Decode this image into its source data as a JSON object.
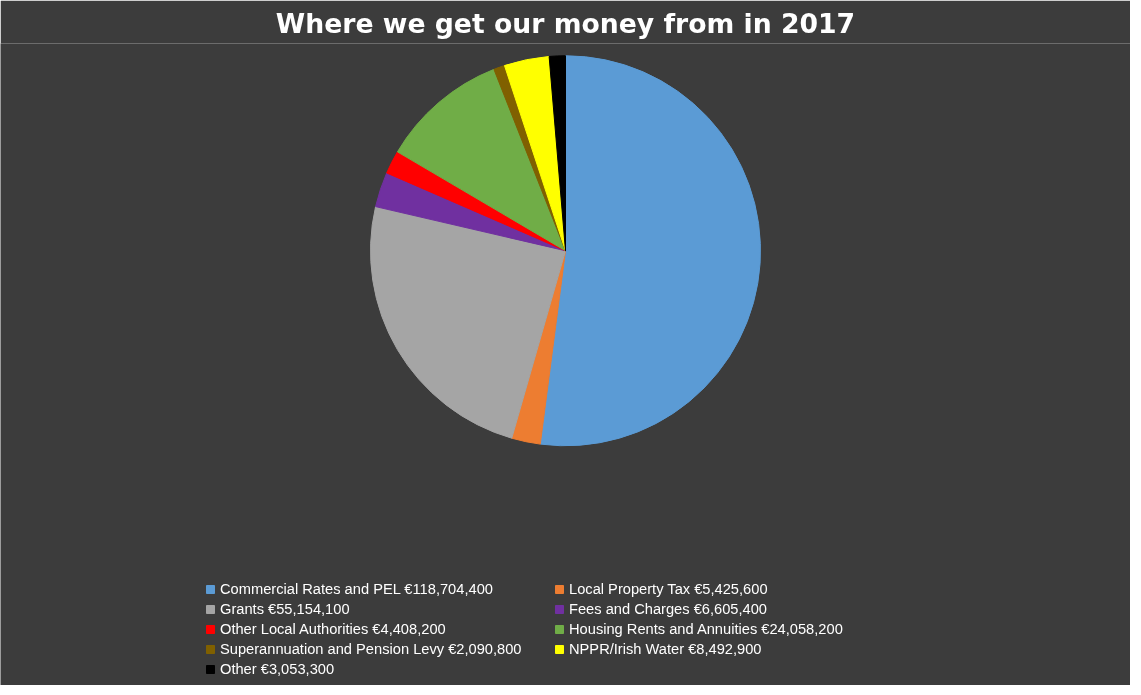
{
  "chart_data": {
    "type": "pie",
    "title": "Where we get our money from in 2017",
    "categories": [
      "Commercial Rates and PEL €118,704,400",
      "Local Property Tax €5,425,600",
      "Grants €55,154,100",
      "Fees and Charges €6,605,400",
      "Other Local Authorities €4,408,200",
      "Housing Rents and Annuities €24,058,200",
      "Superannuation and Pension Levy €2,090,800",
      "NPPR/Irish Water €8,492,900",
      "Other €3,053,300"
    ],
    "values": [
      118704400,
      5425600,
      55154100,
      6605400,
      4408200,
      24058200,
      2090800,
      8492900,
      3053300
    ],
    "colors": [
      "#5b9bd5",
      "#ed7d31",
      "#a5a5a5",
      "#7030a0",
      "#ff0000",
      "#70ad47",
      "#806000",
      "#ffff00",
      "#000000"
    ],
    "legend": "bottom"
  }
}
